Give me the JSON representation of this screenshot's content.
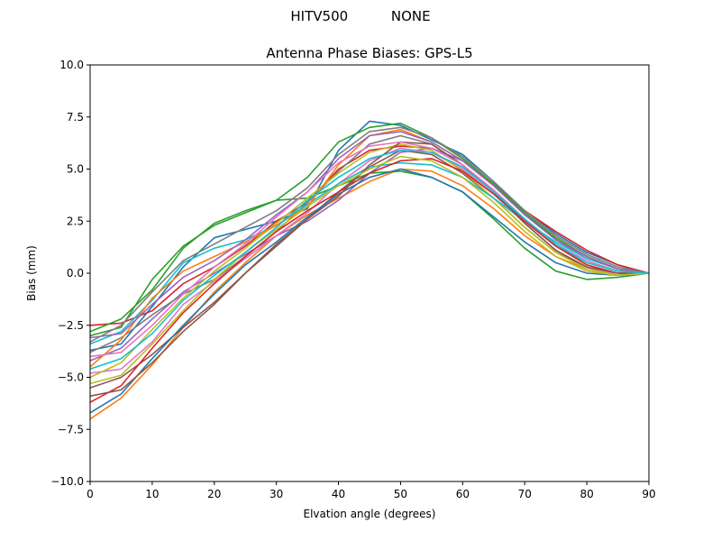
{
  "figure": {
    "suptitle": "HITV500          NONE"
  },
  "chart_data": {
    "type": "line",
    "title": "Antenna Phase Biases: GPS-L5",
    "xlabel": "Elvation angle (degrees)",
    "ylabel": "Bias (mm)",
    "xlim": [
      0,
      90
    ],
    "ylim": [
      -10,
      10
    ],
    "xticks": [
      0,
      10,
      20,
      30,
      40,
      50,
      60,
      70,
      80,
      90
    ],
    "xtick_labels": [
      "0",
      "10",
      "20",
      "30",
      "40",
      "50",
      "60",
      "70",
      "80",
      "90"
    ],
    "yticks": [
      -10,
      -7.5,
      -5,
      -2.5,
      0,
      2.5,
      5,
      7.5,
      10
    ],
    "ytick_labels": [
      "−10.0",
      "−7.5",
      "−5.0",
      "−2.5",
      "0.0",
      "2.5",
      "5.0",
      "7.5",
      "10.0"
    ],
    "grid": false,
    "legend": "none",
    "x": [
      0,
      5,
      10,
      15,
      20,
      25,
      30,
      35,
      40,
      45,
      50,
      55,
      60,
      65,
      70,
      75,
      80,
      85,
      90
    ],
    "colors": [
      "#1f77b4",
      "#ff7f0e",
      "#2ca02c",
      "#d62728",
      "#9467bd",
      "#8c564b",
      "#e377c2",
      "#7f7f7f",
      "#bcbd22",
      "#17becf"
    ],
    "series": [
      {
        "values": [
          -3.7,
          -3.4,
          -1.6,
          0.3,
          1.7,
          2.1,
          2.5,
          3.1,
          5.9,
          7.3,
          7.1,
          6.4,
          5.7,
          4.4,
          3.0,
          1.9,
          1.0,
          0.4,
          0.0
        ]
      },
      {
        "values": [
          -7.0,
          -6.0,
          -4.4,
          -2.6,
          -0.9,
          0.5,
          1.8,
          2.8,
          3.6,
          4.4,
          5.0,
          4.9,
          4.2,
          3.1,
          1.8,
          0.8,
          0.2,
          0.0,
          0.0
        ]
      },
      {
        "values": [
          -3.0,
          -2.6,
          -0.3,
          1.3,
          2.3,
          2.9,
          3.5,
          3.6,
          4.2,
          4.8,
          4.9,
          4.6,
          3.9,
          2.6,
          1.2,
          0.1,
          -0.3,
          -0.2,
          0.0
        ]
      },
      {
        "values": [
          -2.5,
          -2.4,
          -1.8,
          -0.5,
          0.3,
          1.3,
          2.5,
          3.4,
          5.0,
          5.9,
          6.1,
          6.0,
          5.4,
          4.3,
          3.0,
          2.0,
          1.1,
          0.4,
          0.0
        ]
      },
      {
        "values": [
          -4.2,
          -3.6,
          -2.2,
          -0.9,
          0.0,
          0.9,
          1.8,
          2.5,
          3.5,
          4.8,
          5.8,
          6.0,
          5.4,
          4.3,
          2.9,
          1.6,
          0.7,
          0.2,
          0.0
        ]
      },
      {
        "values": [
          -5.5,
          -5.0,
          -3.9,
          -2.6,
          -1.4,
          0.0,
          1.3,
          2.6,
          3.9,
          5.1,
          5.9,
          5.7,
          4.8,
          3.6,
          2.2,
          1.0,
          0.3,
          0.0,
          0.0
        ]
      },
      {
        "values": [
          -4.8,
          -4.6,
          -3.3,
          -1.5,
          -0.4,
          0.7,
          1.8,
          2.9,
          4.3,
          5.4,
          6.0,
          5.8,
          5.0,
          3.8,
          2.4,
          1.1,
          0.3,
          -0.1,
          0.0
        ]
      },
      {
        "values": [
          -3.8,
          -3.1,
          -2.0,
          -1.0,
          -0.3,
          0.8,
          2.0,
          3.4,
          4.9,
          6.2,
          6.6,
          6.2,
          5.2,
          3.9,
          2.5,
          1.3,
          0.5,
          0.1,
          0.0
        ]
      },
      {
        "values": [
          -5.0,
          -4.3,
          -2.7,
          -1.2,
          0.1,
          1.2,
          2.4,
          3.6,
          4.8,
          5.8,
          6.2,
          5.9,
          4.9,
          3.6,
          2.2,
          1.0,
          0.2,
          -0.1,
          0.0
        ]
      },
      {
        "values": [
          -3.4,
          -2.8,
          -1.3,
          0.5,
          1.2,
          1.6,
          2.3,
          3.3,
          4.3,
          5.1,
          5.3,
          5.2,
          4.6,
          3.6,
          2.5,
          1.5,
          0.7,
          0.2,
          0.0
        ]
      },
      {
        "values": [
          -6.7,
          -5.8,
          -4.1,
          -2.5,
          -1.0,
          0.4,
          1.5,
          2.7,
          3.8,
          4.6,
          5.0,
          4.6,
          3.9,
          2.7,
          1.5,
          0.5,
          0.0,
          -0.1,
          0.0
        ]
      },
      {
        "values": [
          -4.5,
          -3.2,
          -1.2,
          0.1,
          0.8,
          1.5,
          2.3,
          3.2,
          5.2,
          6.6,
          6.9,
          6.3,
          5.4,
          4.2,
          2.9,
          1.7,
          0.8,
          0.2,
          0.0
        ]
      },
      {
        "values": [
          -2.8,
          -2.2,
          -0.8,
          1.2,
          2.4,
          3.0,
          3.5,
          4.6,
          6.3,
          7.0,
          7.2,
          6.5,
          5.5,
          4.3,
          2.9,
          1.7,
          0.8,
          0.2,
          0.0
        ]
      },
      {
        "values": [
          -6.2,
          -5.4,
          -3.6,
          -1.9,
          -0.5,
          0.8,
          2.0,
          3.0,
          3.9,
          4.8,
          5.4,
          5.5,
          4.9,
          3.8,
          2.5,
          1.3,
          0.4,
          0.0,
          0.0
        ]
      },
      {
        "values": [
          -3.1,
          -2.9,
          -1.5,
          -0.2,
          0.6,
          1.6,
          2.8,
          3.9,
          5.5,
          6.6,
          6.8,
          6.3,
          5.4,
          4.2,
          2.8,
          1.6,
          0.8,
          0.2,
          0.0
        ]
      },
      {
        "values": [
          -5.9,
          -5.6,
          -4.3,
          -2.8,
          -1.5,
          0.0,
          1.4,
          2.6,
          3.7,
          5.2,
          6.3,
          6.2,
          5.2,
          3.9,
          2.4,
          1.1,
          0.3,
          0.0,
          0.0
        ]
      },
      {
        "values": [
          -4.0,
          -3.8,
          -2.5,
          -1.0,
          0.3,
          1.4,
          2.7,
          3.9,
          5.3,
          6.1,
          6.3,
          6.0,
          5.2,
          4.0,
          2.6,
          1.4,
          0.6,
          0.1,
          0.0
        ]
      },
      {
        "values": [
          -3.3,
          -2.5,
          -0.9,
          0.6,
          1.4,
          2.2,
          3.0,
          4.1,
          5.7,
          6.8,
          7.0,
          6.5,
          5.6,
          4.4,
          3.0,
          1.8,
          0.9,
          0.3,
          0.0
        ]
      },
      {
        "values": [
          -5.3,
          -4.9,
          -3.4,
          -1.8,
          -0.3,
          1.0,
          2.1,
          3.2,
          4.2,
          5.0,
          5.6,
          5.4,
          4.6,
          3.4,
          2.0,
          0.8,
          0.1,
          -0.1,
          0.0
        ]
      },
      {
        "values": [
          -4.6,
          -4.1,
          -2.9,
          -1.3,
          -0.1,
          1.0,
          2.2,
          3.5,
          4.6,
          5.5,
          5.9,
          5.8,
          5.1,
          3.9,
          2.6,
          1.4,
          0.5,
          0.1,
          0.0
        ]
      }
    ]
  }
}
